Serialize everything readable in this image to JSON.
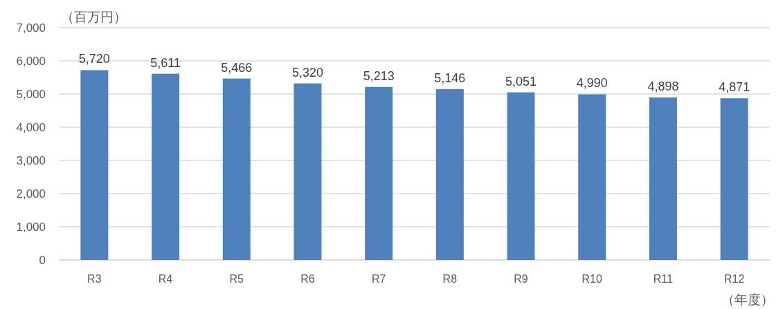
{
  "chart_data": {
    "type": "bar",
    "ylabel": "（百万円）",
    "xlabel": "（年度）",
    "categories": [
      "R3",
      "R4",
      "R5",
      "R6",
      "R7",
      "R8",
      "R9",
      "R10",
      "R11",
      "R12"
    ],
    "values": [
      5720,
      5611,
      5466,
      5320,
      5213,
      5146,
      5051,
      4990,
      4898,
      4871
    ],
    "value_labels": [
      "5,720",
      "5,611",
      "5,466",
      "5,320",
      "5,213",
      "5,146",
      "5,051",
      "4,990",
      "4,898",
      "4,871"
    ],
    "color": "#4f81bd",
    "ylim": [
      0,
      7000
    ],
    "yticks": [
      0,
      {
        "value": 1000,
        "label": "1,000"
      },
      {
        "value": 2000,
        "label": "2,000"
      },
      {
        "value": 3000,
        "label": "3,000"
      },
      {
        "value": 4000,
        "label": "4,000"
      },
      {
        "value": 5000,
        "label": "5,000"
      },
      {
        "value": 6000,
        "label": "6,000"
      },
      {
        "value": 7000,
        "label": "7,000"
      }
    ],
    "grid": "y"
  }
}
